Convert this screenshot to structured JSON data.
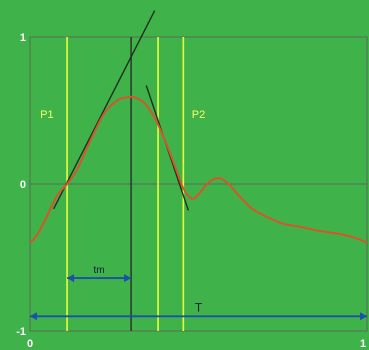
{
  "chart_data": {
    "type": "line",
    "title": "",
    "xlabel": "",
    "ylabel": "",
    "xlim": [
      0,
      1
    ],
    "ylim": [
      -1,
      1
    ],
    "x_ticks": [
      "0",
      "1"
    ],
    "y_ticks": [
      "1",
      "0",
      "-1"
    ],
    "grid": true,
    "background_color": "#3fb34a",
    "curve_color": "#d9532b",
    "series": [
      {
        "x": [
          0.0,
          0.02,
          0.05,
          0.08,
          0.11,
          0.14,
          0.18,
          0.22,
          0.26,
          0.29,
          0.31,
          0.34,
          0.37,
          0.4,
          0.43,
          0.455,
          0.48,
          0.5,
          0.53,
          0.56,
          0.59,
          0.62,
          0.66,
          0.7,
          0.75,
          0.8,
          0.86,
          0.92,
          0.97,
          1.0
        ],
        "y": [
          -0.4,
          -0.35,
          -0.22,
          -0.08,
          0.0,
          0.1,
          0.3,
          0.48,
          0.57,
          0.59,
          0.59,
          0.55,
          0.45,
          0.3,
          0.12,
          -0.03,
          -0.1,
          -0.07,
          0.01,
          0.04,
          0.0,
          -0.08,
          -0.17,
          -0.22,
          -0.27,
          -0.29,
          -0.32,
          -0.34,
          -0.37,
          -0.4
        ]
      }
    ],
    "vertical_lines": [
      {
        "x": 0.11,
        "label": "",
        "color": "#e8ff3a"
      },
      {
        "x": 0.3,
        "label": "",
        "color": "#2c3e2c"
      },
      {
        "x": 0.38,
        "label": "",
        "color": "#e8ff3a"
      },
      {
        "x": 0.455,
        "label": "",
        "color": "#e8ff3a"
      }
    ],
    "tangents": [
      {
        "from": [
          0.07,
          -0.17
        ],
        "to": [
          0.37,
          1.18
        ]
      },
      {
        "from": [
          0.345,
          0.67
        ],
        "to": [
          0.47,
          -0.18
        ]
      }
    ],
    "annotations": [
      {
        "text": "P1",
        "x": 0.03,
        "y": 0.45
      },
      {
        "text": "P2",
        "x": 0.48,
        "y": 0.45
      }
    ],
    "arrows": [
      {
        "label": "tm",
        "x0": 0.11,
        "x1": 0.3,
        "y": -0.64
      },
      {
        "label": "T",
        "x0": 0.0,
        "x1": 1.0,
        "y": -0.9
      }
    ]
  }
}
